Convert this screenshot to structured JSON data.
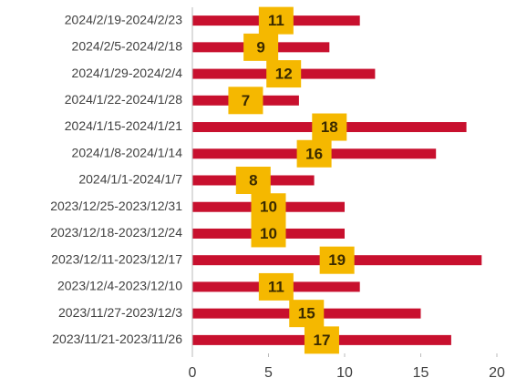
{
  "chart_data": {
    "type": "barh",
    "categories": [
      "2024/2/19-2024/2/23",
      "2024/2/5-2024/2/18",
      "2024/1/29-2024/2/4",
      "2024/1/22-2024/1/28",
      "2024/1/15-2024/1/21",
      "2024/1/8-2024/1/14",
      "2024/1/1-2024/1/7",
      "2023/12/25-2023/12/31",
      "2023/12/18-2023/12/24",
      "2023/12/11-2023/12/17",
      "2023/12/4-2023/12/10",
      "2023/11/27-2023/12/3",
      "2023/11/21-2023/11/26"
    ],
    "values": [
      11,
      9,
      12,
      7,
      18,
      16,
      8,
      10,
      10,
      19,
      11,
      15,
      17
    ],
    "color": "#c8102e",
    "label_color": "#f5b800",
    "xlim": [
      0,
      20
    ],
    "xticks": [
      0,
      5,
      10,
      15,
      20
    ],
    "grid": false
  }
}
